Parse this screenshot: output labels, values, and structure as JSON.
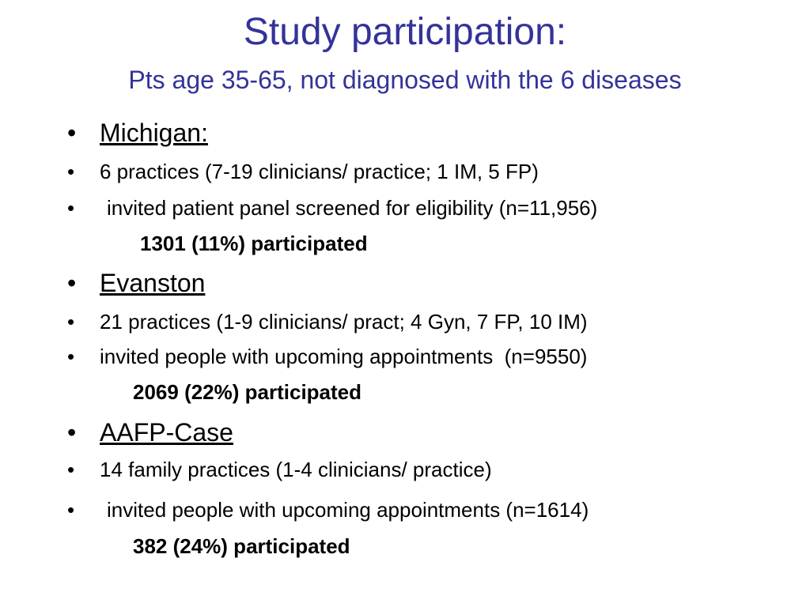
{
  "slide": {
    "title": "Study participation:",
    "subtitle": "Pts age 35-65, not diagnosed with the 6 diseases",
    "bullet_char": "•",
    "sections": [
      {
        "heading": "Michigan:",
        "item1": "6 practices (7-19 clinicians/ practice; 1 IM, 5 FP)",
        "item2": "invited patient panel screened for eligibility (n=11,956)",
        "result": "1301 (11%) participated"
      },
      {
        "heading": "Evanston",
        "item1": "21 practices (1-9 clinicians/ pract; 4 Gyn, 7 FP, 10 IM)",
        "item2": "invited people with upcoming appointments  (n=9550)",
        "result": "2069 (22%) participated"
      },
      {
        "heading": "AAFP-Case",
        "item1": "14 family practices (1-4 clinicians/ practice)",
        "item2": "invited people with upcoming appointments (n=1614)",
        "result": "382 (24%) participated"
      }
    ]
  }
}
